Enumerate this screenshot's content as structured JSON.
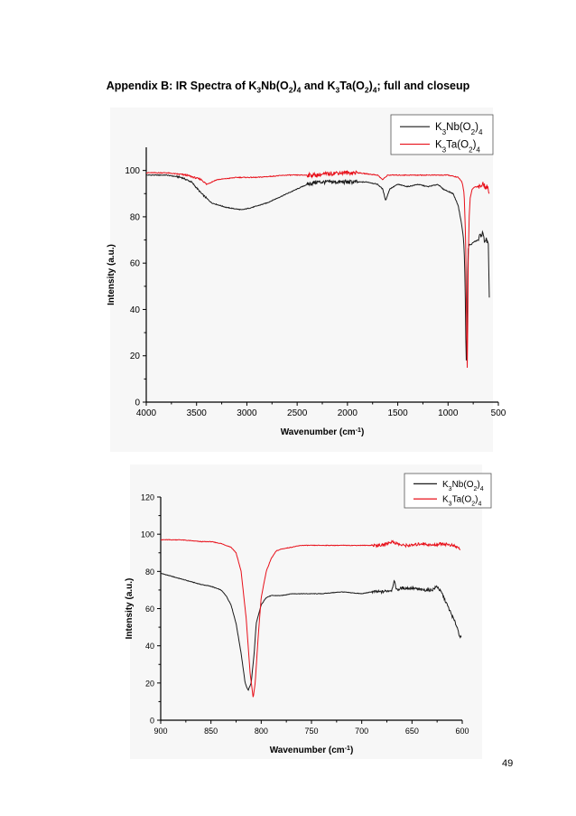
{
  "page": {
    "heading": {
      "t1": "Appendix B: IR Spectra of K",
      "s1": "3",
      "t2": "Nb(O",
      "s2": "2",
      "t3": ")",
      "s3": "4",
      "t4": " and K",
      "s4": "3",
      "t5": "Ta(O",
      "s5": "2",
      "t6": ")",
      "s6": "4",
      "t7": "; full and closeup"
    },
    "page_number": "49"
  },
  "colors": {
    "nb_series": "#1a1a1a",
    "ta_series": "#e8101a",
    "axis": "#000000",
    "plot_bg": "#f7f7f7"
  },
  "chart_data": [
    {
      "type": "line",
      "xlabel": "Wavenumber (cm-1)",
      "ylabel": "Intensity (a.u.)",
      "xlim": [
        4000,
        500
      ],
      "ylim": [
        0,
        110
      ],
      "x_reversed": true,
      "xticks": [
        4000,
        3500,
        3000,
        2500,
        2000,
        1500,
        1000,
        500
      ],
      "yticks": [
        0,
        20,
        40,
        60,
        80,
        100
      ],
      "grid": false,
      "legend_position": "top-right",
      "series": [
        {
          "name": "K3Nb(O2)4",
          "x": [
            4000,
            3800,
            3650,
            3550,
            3450,
            3350,
            3200,
            3050,
            2950,
            2800,
            2650,
            2500,
            2400,
            2300,
            2200,
            2100,
            2000,
            1900,
            1800,
            1700,
            1650,
            1620,
            1580,
            1500,
            1400,
            1300,
            1200,
            1100,
            1050,
            1000,
            950,
            900,
            870,
            850,
            840,
            830,
            825,
            818,
            812,
            805,
            800,
            790,
            770,
            750,
            700,
            680,
            660,
            640,
            620,
            600,
            590
          ],
          "y": [
            98,
            98,
            97,
            95,
            90,
            86,
            84,
            83,
            84,
            86,
            89,
            92,
            94,
            95,
            95,
            95,
            95,
            95,
            95,
            94,
            92,
            87,
            92,
            94,
            93,
            94,
            93,
            94,
            92,
            91,
            90,
            85,
            78,
            72,
            66,
            50,
            30,
            16,
            30,
            55,
            66,
            68,
            68,
            69,
            70,
            72,
            73,
            70,
            70,
            68,
            44
          ]
        },
        {
          "name": "K3Ta(O2)4",
          "x": [
            4000,
            3800,
            3600,
            3450,
            3400,
            3300,
            3100,
            2900,
            2600,
            2300,
            2100,
            1900,
            1700,
            1650,
            1600,
            1550,
            1400,
            1200,
            1000,
            900,
            860,
            840,
            825,
            815,
            810,
            805,
            800,
            790,
            780,
            760,
            730,
            700,
            650,
            620,
            600,
            590
          ],
          "y": [
            99,
            99,
            98,
            96,
            94,
            96,
            97,
            97,
            98,
            98,
            99,
            99,
            98,
            96,
            98,
            98,
            98,
            98,
            98,
            97,
            95,
            90,
            70,
            30,
            12,
            30,
            60,
            80,
            88,
            92,
            93,
            93,
            94,
            93,
            92,
            91
          ]
        }
      ]
    },
    {
      "type": "line",
      "xlabel": "Wavenumber (cm-1)",
      "ylabel": "Intensity (a.u.)",
      "xlim": [
        900,
        600
      ],
      "ylim": [
        0,
        120
      ],
      "x_reversed": true,
      "xticks": [
        900,
        850,
        800,
        750,
        700,
        650,
        600
      ],
      "yticks": [
        0,
        20,
        40,
        60,
        80,
        100,
        120
      ],
      "grid": false,
      "legend_position": "top-right",
      "series": [
        {
          "name": "K3Nb(O2)4",
          "x": [
            900,
            880,
            860,
            850,
            840,
            835,
            830,
            825,
            820,
            816,
            813,
            810,
            807,
            805,
            800,
            795,
            790,
            780,
            770,
            760,
            740,
            720,
            700,
            690,
            680,
            670,
            668,
            665,
            660,
            650,
            640,
            630,
            625,
            620,
            615,
            610,
            605,
            603,
            601
          ],
          "y": [
            79,
            76,
            73,
            72,
            70,
            67,
            62,
            52,
            36,
            20,
            16,
            20,
            36,
            52,
            62,
            66,
            67,
            67,
            68,
            68,
            68,
            69,
            68,
            69,
            69,
            70,
            75,
            70,
            71,
            71,
            70,
            70,
            72,
            68,
            62,
            56,
            50,
            46,
            44
          ]
        },
        {
          "name": "K3Ta(O2)4",
          "x": [
            900,
            880,
            860,
            850,
            840,
            830,
            825,
            820,
            815,
            811,
            808,
            806,
            803,
            800,
            795,
            790,
            785,
            780,
            770,
            760,
            740,
            720,
            700,
            680,
            670,
            660,
            650,
            640,
            630,
            620,
            610,
            605,
            602
          ],
          "y": [
            97,
            97,
            96,
            96,
            95,
            93,
            90,
            80,
            55,
            25,
            12,
            20,
            45,
            66,
            80,
            87,
            91,
            92,
            93,
            94,
            94,
            94,
            94,
            94,
            96,
            94,
            94,
            95,
            94,
            95,
            94,
            93,
            92
          ]
        }
      ]
    }
  ]
}
